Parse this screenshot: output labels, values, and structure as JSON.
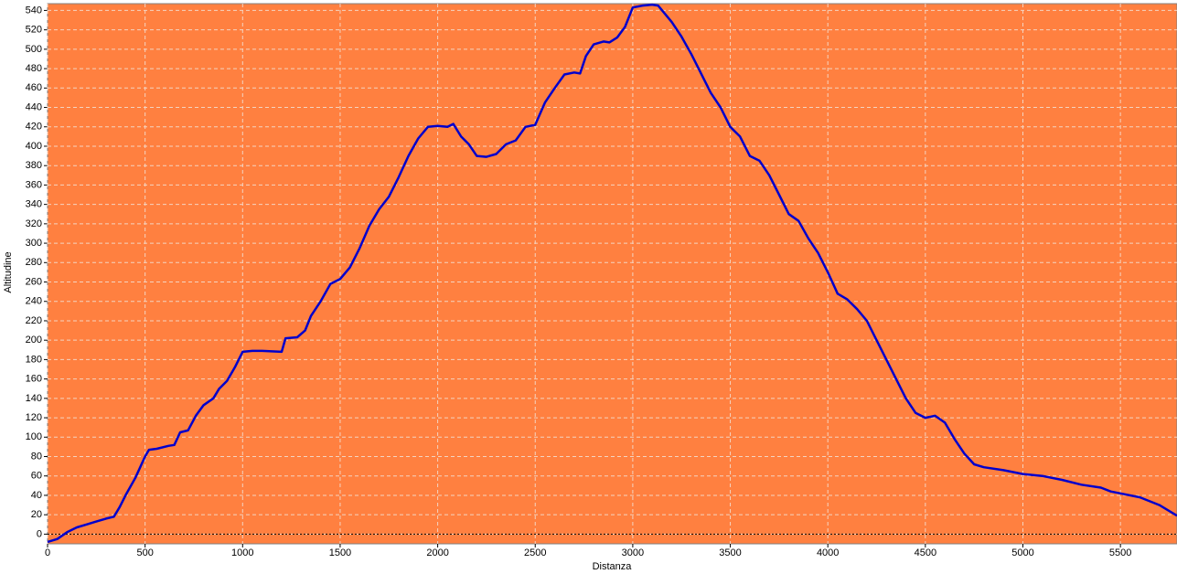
{
  "chart_data": {
    "type": "line",
    "x_label": "Distanza",
    "y_label": "Altitudine",
    "xlim": [
      0,
      5790
    ],
    "ylim": [
      -10,
      547
    ],
    "xticks": [
      0,
      500,
      1000,
      1500,
      2000,
      2500,
      3000,
      3500,
      4000,
      4500,
      5000,
      5500
    ],
    "yticks": [
      0,
      20,
      40,
      60,
      80,
      100,
      120,
      140,
      160,
      180,
      200,
      220,
      240,
      260,
      280,
      300,
      320,
      340,
      360,
      380,
      400,
      420,
      440,
      460,
      480,
      500,
      520,
      540
    ],
    "grid": true,
    "background": "#ff8040",
    "series": [
      {
        "color": "#0000cc",
        "x": [
          0,
          50,
          100,
          150,
          200,
          250,
          300,
          340,
          370,
          400,
          450,
          500,
          520,
          560,
          620,
          650,
          680,
          720,
          760,
          800,
          850,
          880,
          920,
          960,
          1000,
          1050,
          1100,
          1200,
          1220,
          1280,
          1320,
          1350,
          1400,
          1450,
          1500,
          1550,
          1600,
          1650,
          1700,
          1750,
          1800,
          1850,
          1900,
          1950,
          2000,
          2050,
          2080,
          2120,
          2160,
          2200,
          2250,
          2300,
          2350,
          2400,
          2450,
          2500,
          2550,
          2600,
          2650,
          2700,
          2730,
          2760,
          2800,
          2850,
          2880,
          2920,
          2960,
          3000,
          3050,
          3100,
          3130,
          3200,
          3250,
          3300,
          3350,
          3400,
          3450,
          3500,
          3550,
          3600,
          3650,
          3700,
          3750,
          3800,
          3850,
          3900,
          3950,
          4000,
          4050,
          4100,
          4150,
          4200,
          4250,
          4300,
          4350,
          4400,
          4450,
          4500,
          4550,
          4600,
          4650,
          4700,
          4750,
          4800,
          4900,
          5000,
          5100,
          5200,
          5300,
          5400,
          5450,
          5500,
          5600,
          5700,
          5790
        ],
        "values": [
          -8,
          -5,
          2,
          7,
          10,
          13,
          16,
          18,
          28,
          40,
          58,
          80,
          87,
          88,
          91,
          92,
          105,
          107,
          122,
          133,
          140,
          150,
          158,
          172,
          188,
          189,
          189,
          188,
          202,
          203,
          210,
          225,
          240,
          258,
          263,
          275,
          295,
          318,
          335,
          348,
          368,
          390,
          408,
          420,
          421,
          420,
          423,
          410,
          402,
          390,
          389,
          392,
          402,
          406,
          420,
          422,
          445,
          460,
          474,
          476,
          475,
          493,
          505,
          508,
          507,
          512,
          523,
          543,
          545,
          546,
          545,
          528,
          513,
          495,
          475,
          455,
          440,
          420,
          410,
          390,
          385,
          370,
          350,
          330,
          323,
          305,
          290,
          270,
          248,
          242,
          232,
          220,
          200,
          180,
          160,
          140,
          125,
          120,
          122,
          115,
          98,
          83,
          72,
          69,
          66,
          62,
          60,
          56,
          51,
          48,
          44,
          42,
          38,
          30,
          19
        ]
      }
    ]
  }
}
